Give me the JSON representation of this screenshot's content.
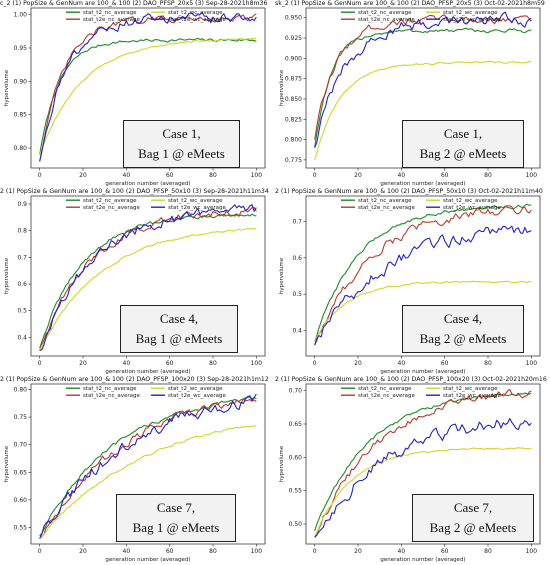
{
  "colors": {
    "stat_t2_nc_average": "#1e8c24",
    "stat_t2e_nc_average": "#b83a2e",
    "stat_t2_wc_average": "#d4d42a",
    "stat_t2e_wc_average": "#2323c8"
  },
  "chart_data": [
    {
      "type": "line",
      "title": "c_2 (1) PopSize & GenNum are 100_& 100 (2) DAO_PFSP_20x5 (3) Sep-28-2021h8m36",
      "xlabel": "generation number (averaged)",
      "ylabel": "hypervolume",
      "xlim": [
        -4,
        104
      ],
      "ylim": [
        0.77,
        1.01
      ],
      "xticks": [
        0,
        20,
        40,
        60,
        80,
        100
      ],
      "yticks": [
        0.8,
        0.85,
        0.9,
        0.95,
        1.0
      ],
      "ytick_labels": [
        "0.80",
        "0.85",
        "0.90",
        "0.95",
        "1.00"
      ],
      "legend_position": "top",
      "series": [
        {
          "name": "stat_t2_nc_average",
          "color_key": "stat_t2_nc_average",
          "start": 0.79,
          "end": 0.962,
          "rate": 0.11,
          "noise": 0.002
        },
        {
          "name": "stat_t2e_nc_average",
          "color_key": "stat_t2e_nc_average",
          "start": 0.78,
          "end": 0.995,
          "rate": 0.09,
          "noise": 0.004
        },
        {
          "name": "stat_t2_wc_average",
          "color_key": "stat_t2_wc_average",
          "start": 0.79,
          "end": 0.965,
          "rate": 0.05,
          "noise": 0.001
        },
        {
          "name": "stat_t2e_wc_average",
          "color_key": "stat_t2e_wc_average",
          "start": 0.78,
          "end": 0.995,
          "rate": 0.085,
          "noise": 0.006
        }
      ],
      "annotation": {
        "line1": "Case 1,",
        "line2": "Bag 1 @ eMeets"
      }
    },
    {
      "type": "line",
      "title": "sk_2 (1) PopSize & GenNum are 100_& 100 (2) DAO_PFSP_20x5 (3) Oct-02-2021h8m59",
      "xlabel": "generation number (averaged)",
      "ylabel": "hypervolume",
      "xlim": [
        -4,
        104
      ],
      "ylim": [
        0.765,
        0.962
      ],
      "xticks": [
        0,
        20,
        40,
        60,
        80,
        100
      ],
      "yticks": [
        0.775,
        0.8,
        0.825,
        0.85,
        0.875,
        0.9,
        0.925,
        0.95
      ],
      "ytick_labels": [
        "0.775",
        "0.800",
        "0.825",
        "0.850",
        "0.875",
        "0.900",
        "0.925",
        "0.950"
      ],
      "legend_position": "top",
      "series": [
        {
          "name": "stat_t2_nc_average",
          "color_key": "stat_t2_nc_average",
          "start": 0.79,
          "end": 0.934,
          "rate": 0.13,
          "noise": 0.002
        },
        {
          "name": "stat_t2e_nc_average",
          "color_key": "stat_t2e_nc_average",
          "start": 0.8,
          "end": 0.948,
          "rate": 0.1,
          "noise": 0.004
        },
        {
          "name": "stat_t2_wc_average",
          "color_key": "stat_t2_wc_average",
          "start": 0.775,
          "end": 0.895,
          "rate": 0.085,
          "noise": 0.001
        },
        {
          "name": "stat_t2e_wc_average",
          "color_key": "stat_t2e_wc_average",
          "start": 0.79,
          "end": 0.948,
          "rate": 0.07,
          "noise": 0.006
        }
      ],
      "annotation": {
        "line1": "Case 1,",
        "line2": "Bag 2 @ eMeets"
      }
    },
    {
      "type": "line",
      "title": "2 (1) PopSize & GenNum are 100_& 100 (2) DAO_PFSP_50x10 (3) Sep-28-2021h11m34",
      "xlabel": "generation number (averaged)",
      "ylabel": "hypervolume",
      "xlim": [
        -4,
        104
      ],
      "ylim": [
        0.33,
        0.93
      ],
      "xticks": [
        0,
        20,
        40,
        60,
        80,
        100
      ],
      "yticks": [
        0.4,
        0.5,
        0.6,
        0.7,
        0.8,
        0.9
      ],
      "ytick_labels": [
        "0.4",
        "0.5",
        "0.6",
        "0.7",
        "0.8",
        "0.9"
      ],
      "legend_position": "top",
      "series": [
        {
          "name": "stat_t2_nc_average",
          "color_key": "stat_t2_nc_average",
          "start": 0.36,
          "end": 0.865,
          "rate": 0.05,
          "noise": 0.006
        },
        {
          "name": "stat_t2e_nc_average",
          "color_key": "stat_t2e_nc_average",
          "start": 0.35,
          "end": 0.885,
          "rate": 0.042,
          "noise": 0.012
        },
        {
          "name": "stat_t2_wc_average",
          "color_key": "stat_t2_wc_average",
          "start": 0.35,
          "end": 0.82,
          "rate": 0.035,
          "noise": 0.003
        },
        {
          "name": "stat_t2e_wc_average",
          "color_key": "stat_t2e_wc_average",
          "start": 0.35,
          "end": 0.885,
          "rate": 0.042,
          "noise": 0.016
        }
      ],
      "annotation": {
        "line1": "Case 4,",
        "line2": "Bag 1 @ eMeets"
      }
    },
    {
      "type": "line",
      "title": "2 (1) PopSize & GenNum are 100_& 100 (2) DAO_PFSP_50x10 (3) Oct-02-2021h11m40",
      "xlabel": "generation number (averaged)",
      "ylabel": "hypervolume",
      "xlim": [
        -4,
        104
      ],
      "ylim": [
        0.33,
        0.77
      ],
      "xticks": [
        0,
        20,
        40,
        60,
        80,
        100
      ],
      "yticks": [
        0.4,
        0.5,
        0.6,
        0.7
      ],
      "ytick_labels": [
        "0.4",
        "0.5",
        "0.6",
        "0.7"
      ],
      "legend_position": "top",
      "series": [
        {
          "name": "stat_t2_nc_average",
          "color_key": "stat_t2_nc_average",
          "start": 0.37,
          "end": 0.745,
          "rate": 0.05,
          "noise": 0.004
        },
        {
          "name": "stat_t2e_nc_average",
          "color_key": "stat_t2e_nc_average",
          "start": 0.36,
          "end": 0.745,
          "rate": 0.038,
          "noise": 0.01
        },
        {
          "name": "stat_t2_wc_average",
          "color_key": "stat_t2_wc_average",
          "start": 0.37,
          "end": 0.535,
          "rate": 0.07,
          "noise": 0.002
        },
        {
          "name": "stat_t2e_wc_average",
          "color_key": "stat_t2e_wc_average",
          "start": 0.36,
          "end": 0.7,
          "rate": 0.03,
          "noise": 0.014
        }
      ],
      "annotation": {
        "line1": "Case 4,",
        "line2": "Bag 2 @ eMeets"
      }
    },
    {
      "type": "line",
      "title": "2 (1) PopSize & GenNum are 100_& 100 (2) DAO_PFSP_100x20 (3) Sep-28-2021h1m12",
      "xlabel": "generation number (averaged)",
      "ylabel": "hypervolume",
      "xlim": [
        -4,
        104
      ],
      "ylim": [
        0.52,
        0.81
      ],
      "xticks": [
        0,
        20,
        40,
        60,
        80,
        100
      ],
      "yticks": [
        0.55,
        0.6,
        0.65,
        0.7,
        0.75,
        0.8
      ],
      "ytick_labels": [
        "0.55",
        "0.60",
        "0.65",
        "0.70",
        "0.75",
        "0.80"
      ],
      "legend_position": "top",
      "series": [
        {
          "name": "stat_t2_nc_average",
          "color_key": "stat_t2_nc_average",
          "start": 0.535,
          "end": 0.8,
          "rate": 0.028,
          "noise": 0.003
        },
        {
          "name": "stat_t2e_nc_average",
          "color_key": "stat_t2e_nc_average",
          "start": 0.53,
          "end": 0.81,
          "rate": 0.024,
          "noise": 0.006
        },
        {
          "name": "stat_t2_wc_average",
          "color_key": "stat_t2_wc_average",
          "start": 0.53,
          "end": 0.77,
          "rate": 0.02,
          "noise": 0.002
        },
        {
          "name": "stat_t2e_wc_average",
          "color_key": "stat_t2e_wc_average",
          "start": 0.53,
          "end": 0.81,
          "rate": 0.023,
          "noise": 0.009
        }
      ],
      "annotation": {
        "line1": "Case 7,",
        "line2": "Bag 1 @ eMeets"
      }
    },
    {
      "type": "line",
      "title": "2 (1) PopSize & GenNum are 100_& 100 (2) DAO_PFSP_100x20 (3) Oct-02-2021h20m16",
      "xlabel": "generation number (averaged)",
      "ylabel": "hypervolume",
      "xlim": [
        -4,
        104
      ],
      "ylim": [
        0.47,
        0.71
      ],
      "xticks": [
        0,
        20,
        40,
        60,
        80,
        100
      ],
      "yticks": [
        0.5,
        0.55,
        0.6,
        0.65,
        0.7
      ],
      "ytick_labels": [
        "0.50",
        "0.55",
        "0.60",
        "0.65",
        "0.70"
      ],
      "legend_position": "top",
      "series": [
        {
          "name": "stat_t2_nc_average",
          "color_key": "stat_t2_nc_average",
          "start": 0.49,
          "end": 0.7,
          "rate": 0.04,
          "noise": 0.002
        },
        {
          "name": "stat_t2e_nc_average",
          "color_key": "stat_t2e_nc_average",
          "start": 0.48,
          "end": 0.705,
          "rate": 0.034,
          "noise": 0.005
        },
        {
          "name": "stat_t2_wc_average",
          "color_key": "stat_t2_wc_average",
          "start": 0.48,
          "end": 0.614,
          "rate": 0.06,
          "noise": 0.001
        },
        {
          "name": "stat_t2e_wc_average",
          "color_key": "stat_t2e_wc_average",
          "start": 0.48,
          "end": 0.665,
          "rate": 0.03,
          "noise": 0.008
        }
      ],
      "annotation": {
        "line1": "Case 7,",
        "line2": "Bag 2 @ eMeets"
      }
    }
  ]
}
